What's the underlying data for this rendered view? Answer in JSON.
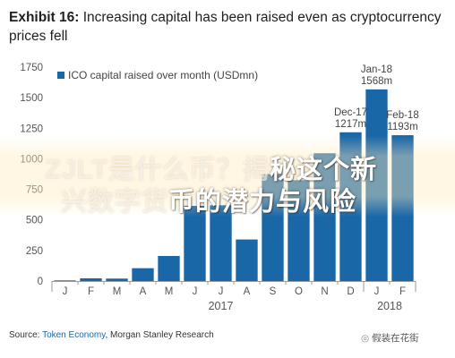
{
  "header": {
    "exhibit": "Exhibit 16:",
    "title": "Increasing capital has been raised even as cryptocurrency prices fell"
  },
  "chart_data": {
    "type": "bar",
    "categories": [
      "J",
      "F",
      "M",
      "A",
      "M",
      "J",
      "J",
      "A",
      "S",
      "O",
      "N",
      "D",
      "J",
      "F"
    ],
    "year_labels": [
      {
        "label": "2017",
        "index": 6
      },
      {
        "label": "2018",
        "index": 12.5
      }
    ],
    "series": [
      {
        "name": "ICO capital raised over month (USDmn)",
        "values": [
          5,
          22,
          20,
          105,
          205,
          615,
          620,
          340,
          875,
          825,
          1045,
          1217,
          1568,
          1193
        ]
      }
    ],
    "data_labels": [
      {
        "index": 11,
        "lines": [
          "Dec-17",
          "1217m"
        ]
      },
      {
        "index": 12,
        "lines": [
          "Jan-18",
          "1568m"
        ]
      },
      {
        "index": 13,
        "lines": [
          "Feb-18",
          "1193m"
        ]
      }
    ],
    "yticks": [
      0,
      250,
      500,
      750,
      1000,
      1250,
      1500,
      1750
    ],
    "ylim": [
      0,
      1750
    ],
    "grid": false,
    "legend": "top-left",
    "bar_color": "#1a67a8"
  },
  "source": {
    "prefix": "Source: ",
    "first": "Token Economy",
    "rest": ", Morgan Stanley Research"
  },
  "wechat": {
    "account": "假装在花街"
  },
  "watermark": {
    "line1": "ZJLT是什么币？揭",
    "line1_dark": "秘这个新",
    "line2": "兴数字货",
    "line2_dark": "币的潜力与风险"
  }
}
